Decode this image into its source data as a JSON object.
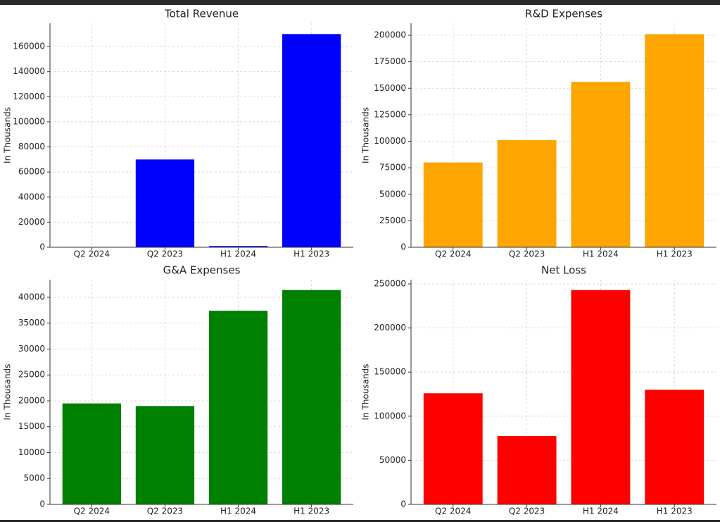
{
  "chart_data": [
    {
      "type": "bar",
      "title": "Total Revenue",
      "y_label": "In Thousands",
      "color": "#0000ff",
      "grid": true,
      "categories": [
        "Q2 2024",
        "Q2 2023",
        "H1 2024",
        "H1 2023"
      ],
      "values": [
        300,
        70000,
        1000,
        170000
      ],
      "ylim": [
        0,
        178600
      ],
      "yticks": [
        0,
        20000,
        40000,
        60000,
        80000,
        100000,
        120000,
        140000,
        160000
      ]
    },
    {
      "type": "bar",
      "title": "R&D Expenses",
      "y_label": "In Thousands",
      "color": "#ffa500",
      "grid": true,
      "categories": [
        "Q2 2024",
        "Q2 2023",
        "H1 2024",
        "H1 2023"
      ],
      "values": [
        80000,
        101000,
        156000,
        201000
      ],
      "ylim": [
        0,
        211300
      ],
      "yticks": [
        0,
        25000,
        50000,
        75000,
        100000,
        125000,
        150000,
        175000,
        200000
      ]
    },
    {
      "type": "bar",
      "title": "G&A Expenses",
      "y_label": "In Thousands",
      "color": "#008000",
      "grid": true,
      "categories": [
        "Q2 2024",
        "Q2 2023",
        "H1 2024",
        "H1 2023"
      ],
      "values": [
        19500,
        19000,
        37400,
        41400
      ],
      "ylim": [
        0,
        43400
      ],
      "yticks": [
        0,
        5000,
        10000,
        15000,
        20000,
        25000,
        30000,
        35000,
        40000
      ]
    },
    {
      "type": "bar",
      "title": "Net Loss",
      "y_label": "In Thousands",
      "color": "#ff0000",
      "grid": true,
      "categories": [
        "Q2 2024",
        "Q2 2023",
        "H1 2024",
        "H1 2023"
      ],
      "values": [
        126000,
        77500,
        243000,
        130000
      ],
      "ylim": [
        0,
        254800
      ],
      "yticks": [
        0,
        50000,
        100000,
        150000,
        200000,
        250000
      ]
    }
  ]
}
